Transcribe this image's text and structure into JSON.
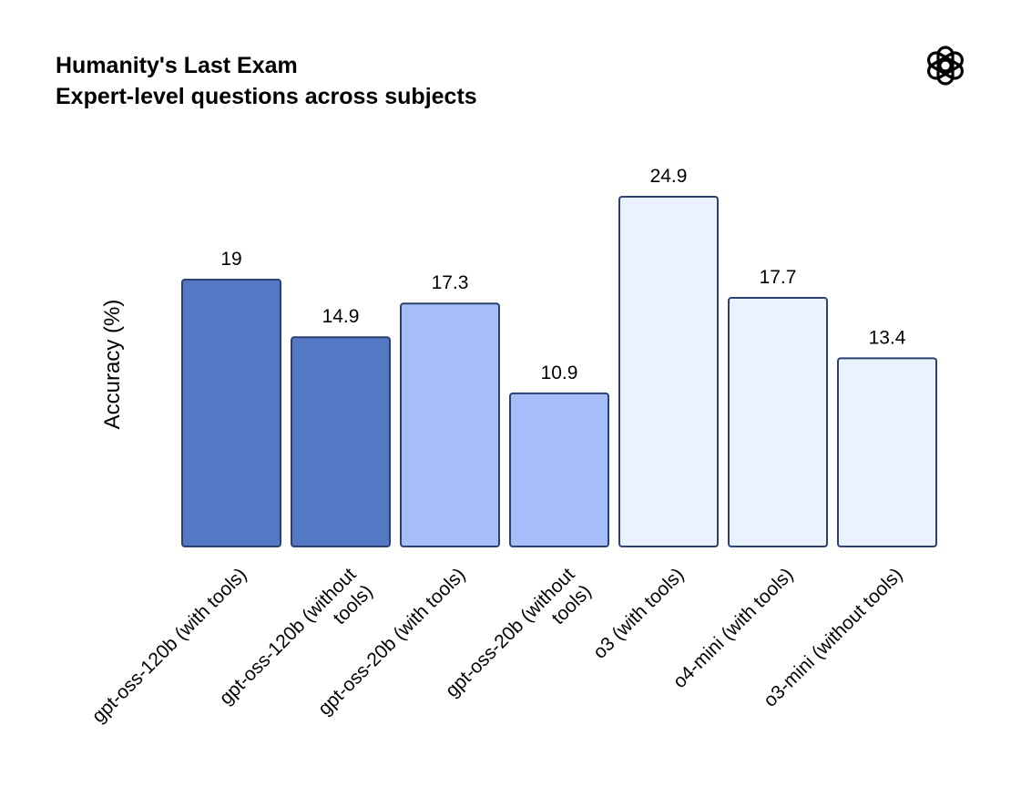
{
  "chart_data": {
    "type": "bar",
    "title": "Humanity's Last Exam",
    "subtitle": "Expert-level questions across subjects",
    "xlabel": "",
    "ylabel": "Accuracy (%)",
    "ylim": [
      0,
      27
    ],
    "grid": false,
    "categories": [
      "gpt-oss-120b (with tools)",
      "gpt-oss-120b (without tools)",
      "gpt-oss-20b (with tools)",
      "gpt-oss-20b (without tools)",
      "o3 (with tools)",
      "o4-mini (with tools)",
      "o3-mini (without tools)"
    ],
    "values": [
      19,
      14.9,
      17.3,
      10.9,
      24.9,
      17.7,
      13.4
    ],
    "value_labels": [
      "19",
      "14.9",
      "17.3",
      "10.9",
      "24.9",
      "17.7",
      "13.4"
    ],
    "tick_lines": [
      [
        "gpt-oss-120b (with tools)"
      ],
      [
        "gpt-oss-120b (without",
        "tools)"
      ],
      [
        "gpt-oss-20b (with tools)"
      ],
      [
        "gpt-oss-20b (without",
        "tools)"
      ],
      [
        "o3 (with tools)"
      ],
      [
        "o4-mini (with tools)"
      ],
      [
        "o3-mini (without tools)"
      ]
    ],
    "bar_colors": [
      "#5478c3",
      "#5478c3",
      "#a5bdf8",
      "#a5bdf8",
      "#eaf2fe",
      "#eaf2fe",
      "#eaf2fe"
    ],
    "bar_stroke": "#2b4170"
  },
  "logo": {
    "icon": "openai-logo-icon"
  }
}
